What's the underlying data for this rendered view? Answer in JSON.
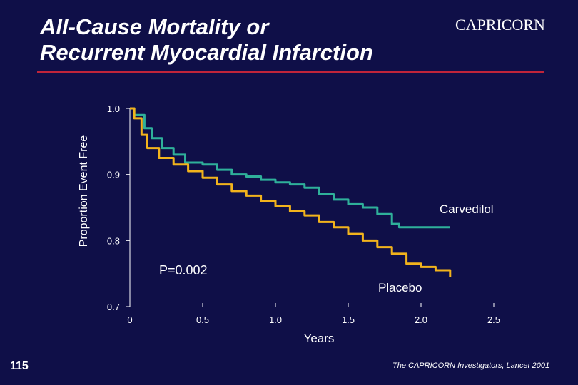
{
  "slide": {
    "title_line1": "All-Cause Mortality or",
    "title_line2": "Recurrent Myocardial Infarction",
    "brand": "CAPRICORN",
    "slide_number": "115",
    "citation": "The CAPRICORN Investigators, Lancet 2001",
    "colors": {
      "background": "#0f0f48",
      "rule": "#c0243a",
      "carvedilol": "#2fb09a",
      "placebo": "#f2b31c",
      "text": "#ffffff"
    }
  },
  "chart_data": {
    "type": "line",
    "title": "All-Cause Mortality or Recurrent Myocardial Infarction",
    "xlabel": "Years",
    "ylabel": "Proportion Event Free",
    "xlim": [
      0,
      2.5
    ],
    "ylim": [
      0.7,
      1.0
    ],
    "x_ticks": [
      0,
      0.5,
      1.0,
      1.5,
      2.0,
      2.5
    ],
    "x_tick_labels": [
      "0",
      "0.5",
      "1.0",
      "1.5",
      "2.0",
      "2.5"
    ],
    "y_ticks": [
      0.7,
      0.8,
      0.9,
      1.0
    ],
    "y_tick_labels": [
      "0.7",
      "0.8",
      "0.9",
      "1.0"
    ],
    "series": [
      {
        "name": "Carvedilol",
        "color": "#2fb09a",
        "points": [
          [
            0,
            1.0
          ],
          [
            0.03,
            0.99
          ],
          [
            0.1,
            0.97
          ],
          [
            0.15,
            0.955
          ],
          [
            0.22,
            0.94
          ],
          [
            0.3,
            0.93
          ],
          [
            0.38,
            0.918
          ],
          [
            0.5,
            0.915
          ],
          [
            0.6,
            0.907
          ],
          [
            0.7,
            0.9
          ],
          [
            0.8,
            0.897
          ],
          [
            0.9,
            0.892
          ],
          [
            1.0,
            0.888
          ],
          [
            1.1,
            0.885
          ],
          [
            1.2,
            0.88
          ],
          [
            1.3,
            0.87
          ],
          [
            1.4,
            0.862
          ],
          [
            1.5,
            0.855
          ],
          [
            1.6,
            0.85
          ],
          [
            1.7,
            0.84
          ],
          [
            1.8,
            0.825
          ],
          [
            1.85,
            0.82
          ],
          [
            2.2,
            0.82
          ]
        ]
      },
      {
        "name": "Placebo",
        "color": "#f2b31c",
        "points": [
          [
            0,
            1.0
          ],
          [
            0.03,
            0.985
          ],
          [
            0.08,
            0.96
          ],
          [
            0.12,
            0.94
          ],
          [
            0.2,
            0.925
          ],
          [
            0.3,
            0.915
          ],
          [
            0.4,
            0.905
          ],
          [
            0.5,
            0.895
          ],
          [
            0.6,
            0.885
          ],
          [
            0.7,
            0.875
          ],
          [
            0.8,
            0.868
          ],
          [
            0.9,
            0.86
          ],
          [
            1.0,
            0.852
          ],
          [
            1.1,
            0.844
          ],
          [
            1.2,
            0.838
          ],
          [
            1.3,
            0.828
          ],
          [
            1.4,
            0.82
          ],
          [
            1.5,
            0.81
          ],
          [
            1.6,
            0.8
          ],
          [
            1.7,
            0.79
          ],
          [
            1.8,
            0.78
          ],
          [
            1.9,
            0.765
          ],
          [
            2.0,
            0.76
          ],
          [
            2.1,
            0.755
          ],
          [
            2.2,
            0.745
          ]
        ]
      }
    ],
    "annotations": {
      "carvedilol_label": "Carvedilol",
      "placebo_label": "Placebo",
      "p_value": "P=0.002"
    }
  }
}
